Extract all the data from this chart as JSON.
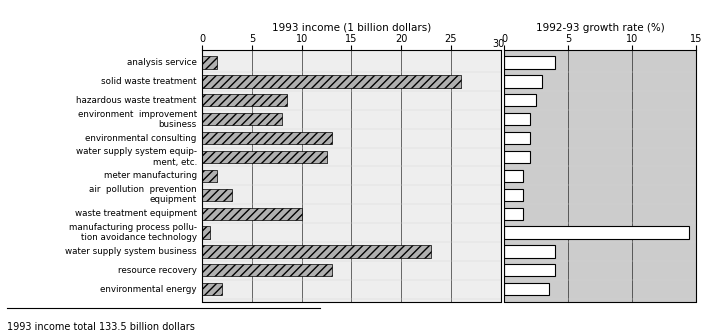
{
  "categories": [
    "analysis service",
    "solid waste treatment",
    "hazardous waste treatment",
    "environment  improvement\nbusiness",
    "environmental consulting",
    "water supply system equip-\nment, etc.",
    "meter manufacturing",
    "air  pollution  prevention\nequipment",
    "waste treatment equipment",
    "manufacturing process pollu-\ntion avoidance technology",
    "water supply system business",
    "resource recovery",
    "environmental energy"
  ],
  "income_values": [
    1.5,
    26.0,
    8.5,
    8.0,
    13.0,
    12.5,
    1.5,
    3.0,
    10.0,
    0.8,
    23.0,
    13.0,
    2.0
  ],
  "growth_values": [
    4.0,
    3.0,
    2.5,
    2.0,
    2.0,
    2.0,
    1.5,
    1.5,
    1.5,
    14.5,
    4.0,
    4.0,
    3.5
  ],
  "income_title": "1993 income (1 billion dollars)",
  "growth_title": "1992-93 growth rate (%)",
  "income_xlim": [
    0,
    30
  ],
  "income_xticks": [
    0,
    5,
    10,
    15,
    20,
    25
  ],
  "growth_xlim": [
    0,
    15
  ],
  "growth_xticks": [
    0,
    5,
    10,
    15
  ],
  "footnote": "1993 income total 133.5 billion dollars",
  "bar_facecolor": "#b0b0b0",
  "bar_edgecolor": "#000000",
  "growth_bar_facecolor": "#ffffff",
  "growth_bar_edgecolor": "#000000",
  "panel_bg": "#e8e8e8",
  "growth_panel_bg": "#d0d0d0"
}
